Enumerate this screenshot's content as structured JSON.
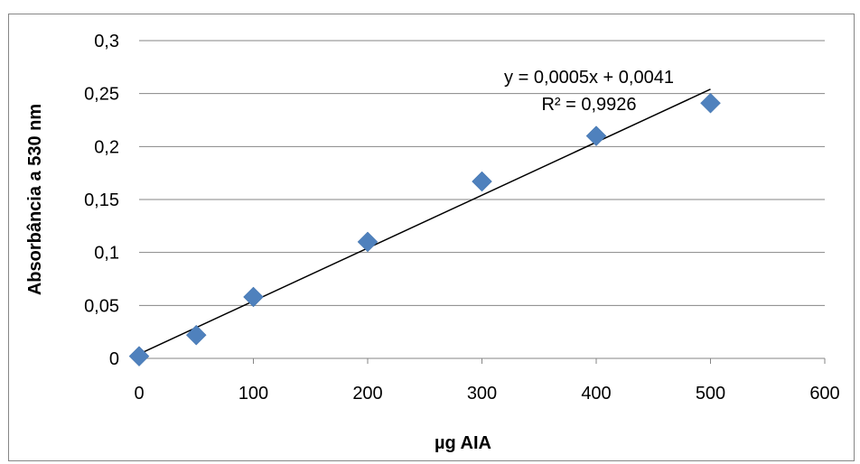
{
  "chart_data": {
    "type": "scatter",
    "xlabel": "µg AIA",
    "ylabel": "Absorbância a 530 nm",
    "xlim": [
      0,
      600
    ],
    "ylim": [
      0,
      0.3
    ],
    "x_ticks": [
      "0",
      "100",
      "200",
      "300",
      "400",
      "500",
      "600"
    ],
    "y_ticks": [
      "0",
      "0,05",
      "0,1",
      "0,15",
      "0,2",
      "0,25",
      "0,3"
    ],
    "grid": "horizontal",
    "legend": "none",
    "series": [
      {
        "marker": "diamond",
        "color": "#4F81BD",
        "x": [
          0,
          50,
          100,
          200,
          300,
          400,
          500
        ],
        "y": [
          0.002,
          0.022,
          0.058,
          0.11,
          0.167,
          0.21,
          0.241
        ]
      }
    ],
    "trendline": {
      "type": "linear",
      "slope": 0.0005,
      "intercept": 0.0041,
      "x_range": [
        0,
        500
      ],
      "color": "#000000",
      "equation_label": "y = 0,0005x + 0,0041",
      "r2_label": "R² = 0,9926"
    }
  }
}
